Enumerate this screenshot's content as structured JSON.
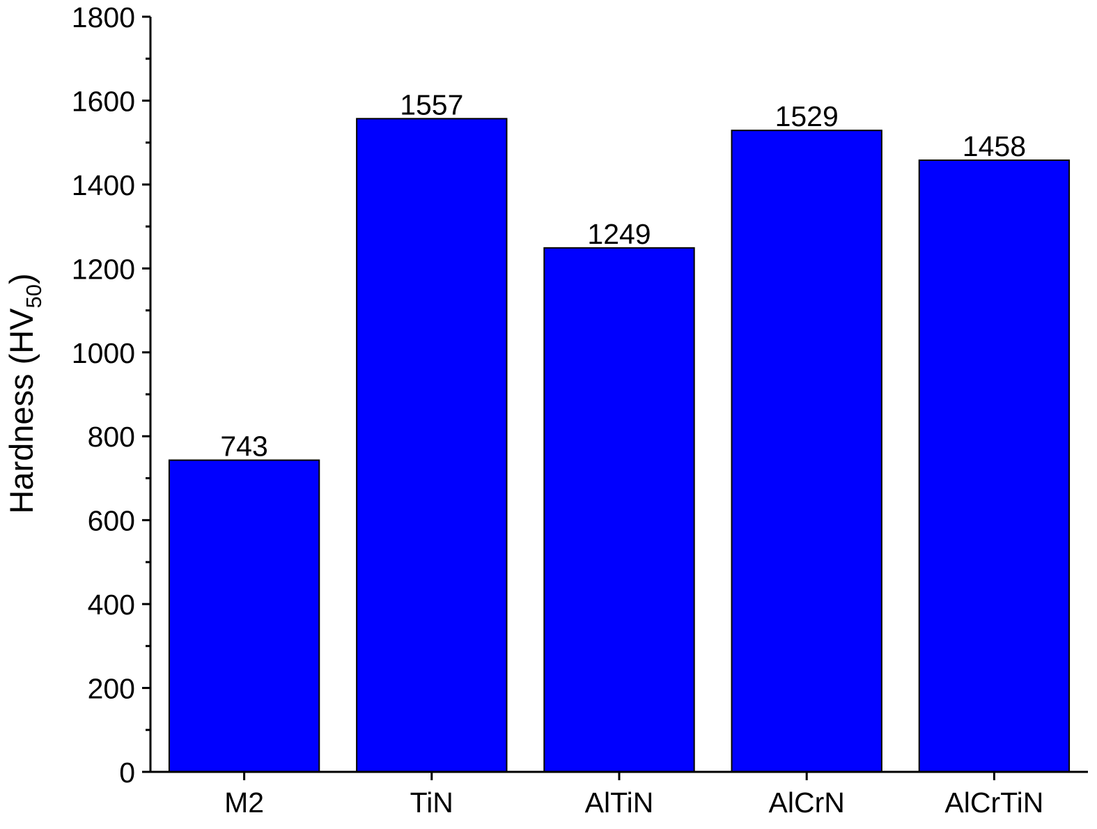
{
  "chart_data": {
    "type": "bar",
    "title": "",
    "xlabel": "",
    "ylabel": {
      "prefix": "Hardness (HV",
      "subscript": "50",
      "suffix": ")"
    },
    "categories": [
      "M2",
      "TiN",
      "AlTiN",
      "AlCrN",
      "AlCrTiN"
    ],
    "values": [
      743,
      1557,
      1249,
      1529,
      1458
    ],
    "data_labels": [
      "743",
      "1557",
      "1249",
      "1529",
      "1458"
    ],
    "ylim": [
      0,
      1800
    ],
    "y_major_ticks": [
      0,
      200,
      400,
      600,
      800,
      1000,
      1200,
      1400,
      1600,
      1800
    ],
    "y_tick_labels": [
      "0",
      "200",
      "400",
      "600",
      "800",
      "1000",
      "1200",
      "1400",
      "1600",
      "1800"
    ],
    "y_minor_step": 100,
    "grid": false,
    "legend": "none",
    "colors": {
      "bar_fill": "#0000FF",
      "bar_stroke": "#000000",
      "axis": "#000000"
    }
  }
}
